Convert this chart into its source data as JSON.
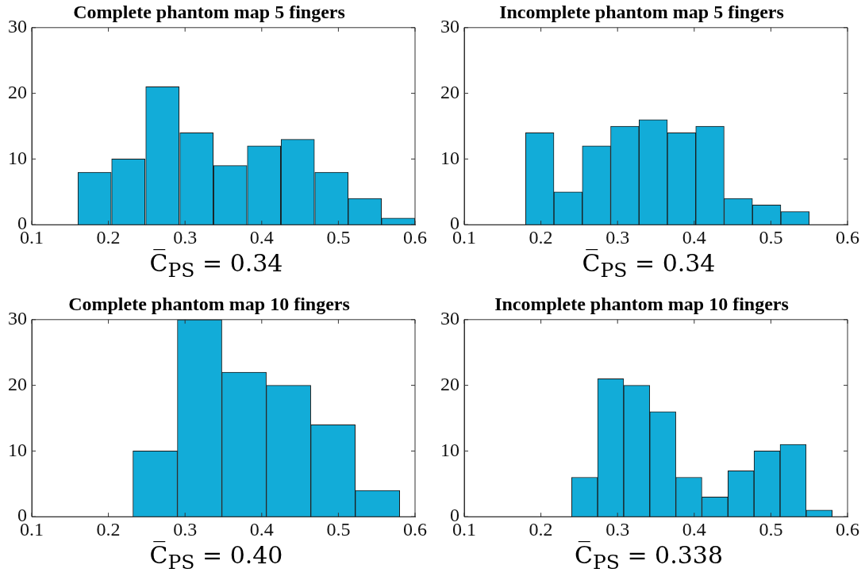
{
  "chart_data": [
    {
      "type": "histogram",
      "title": "Complete phantom map 5 fingers",
      "bins": [
        0.16,
        0.204,
        0.248,
        0.293,
        0.337,
        0.381,
        0.425,
        0.469,
        0.513,
        0.556,
        0.6
      ],
      "values": [
        8,
        10,
        21,
        14,
        9,
        12,
        13,
        8,
        4,
        1
      ],
      "color": "#12acd8",
      "xlim": [
        0.1,
        0.6
      ],
      "xticks": [
        0.1,
        0.2,
        0.3,
        0.4,
        0.5,
        0.6
      ],
      "ylim": [
        0,
        30
      ],
      "yticks": [
        0,
        10,
        20,
        30
      ],
      "annotations": [
        "C̅$_{PS}$ = 0.34"
      ]
    },
    {
      "type": "histogram",
      "title": "Incomplete phantom map 5 fingers",
      "bins": [
        0.18,
        0.217,
        0.254,
        0.291,
        0.328,
        0.365,
        0.402,
        0.439,
        0.476,
        0.513,
        0.55
      ],
      "values": [
        14,
        5,
        12,
        15,
        16,
        14,
        15,
        4,
        3,
        2
      ],
      "color": "#12acd8",
      "xlim": [
        0.1,
        0.6
      ],
      "xticks": [
        0.1,
        0.2,
        0.3,
        0.4,
        0.5,
        0.6
      ],
      "ylim": [
        0,
        30
      ],
      "yticks": [
        0,
        10,
        20,
        30
      ],
      "annotations": [
        "C̅$_{PS}$ = 0.34"
      ]
    },
    {
      "type": "histogram",
      "title": "Complete phantom map 10 fingers",
      "bins": [
        0.232,
        0.29,
        0.348,
        0.406,
        0.464,
        0.522,
        0.58
      ],
      "values": [
        10,
        30,
        22,
        20,
        14,
        4
      ],
      "color": "#12acd8",
      "xlim": [
        0.1,
        0.6
      ],
      "xticks": [
        0.1,
        0.2,
        0.3,
        0.4,
        0.5,
        0.6
      ],
      "ylim": [
        0,
        30
      ],
      "yticks": [
        0,
        10,
        20,
        30
      ],
      "annotations": [
        "C̅$_{PS}$ = 0.40"
      ]
    },
    {
      "type": "histogram",
      "title": "Incomplete phantom map 10 fingers",
      "bins": [
        0.24,
        0.274,
        0.308,
        0.342,
        0.376,
        0.41,
        0.444,
        0.478,
        0.512,
        0.546,
        0.58
      ],
      "values": [
        6,
        21,
        20,
        16,
        6,
        3,
        7,
        10,
        11,
        1
      ],
      "color": "#12acd8",
      "xlim": [
        0.1,
        0.6
      ],
      "xticks": [
        0.1,
        0.2,
        0.3,
        0.4,
        0.5,
        0.6
      ],
      "ylim": [
        0,
        30
      ],
      "yticks": [
        0,
        10,
        20,
        30
      ],
      "annotations": [
        "C̅$_{PS}$ = 0.338"
      ]
    }
  ]
}
